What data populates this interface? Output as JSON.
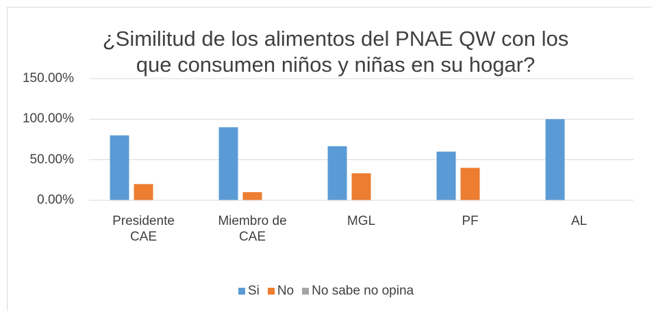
{
  "chart_data": {
    "type": "bar",
    "title": "¿Similitud de los alimentos del PNAE QW con los que consumen niños y niñas en su hogar?",
    "categories": [
      "Presidente CAE",
      "Miembro de CAE",
      "MGL",
      "PF",
      "AL"
    ],
    "series": [
      {
        "name": "Si",
        "color": "#5b9bd5",
        "values": [
          80,
          90,
          66.67,
          60,
          100
        ]
      },
      {
        "name": "No",
        "color": "#ed7d31",
        "values": [
          20,
          10,
          33.33,
          40,
          0
        ]
      },
      {
        "name": "No sabe no opina",
        "color": "#a5a5a5",
        "values": [
          0,
          0,
          0,
          0,
          0
        ]
      }
    ],
    "ylim": [
      0,
      150
    ],
    "yticks": [
      {
        "value": 0,
        "label": "0.00%"
      },
      {
        "value": 50,
        "label": "50.00%"
      },
      {
        "value": 100,
        "label": "100.00%"
      },
      {
        "value": 150,
        "label": "150.00%"
      }
    ],
    "grid": true,
    "legend": "bottom"
  }
}
